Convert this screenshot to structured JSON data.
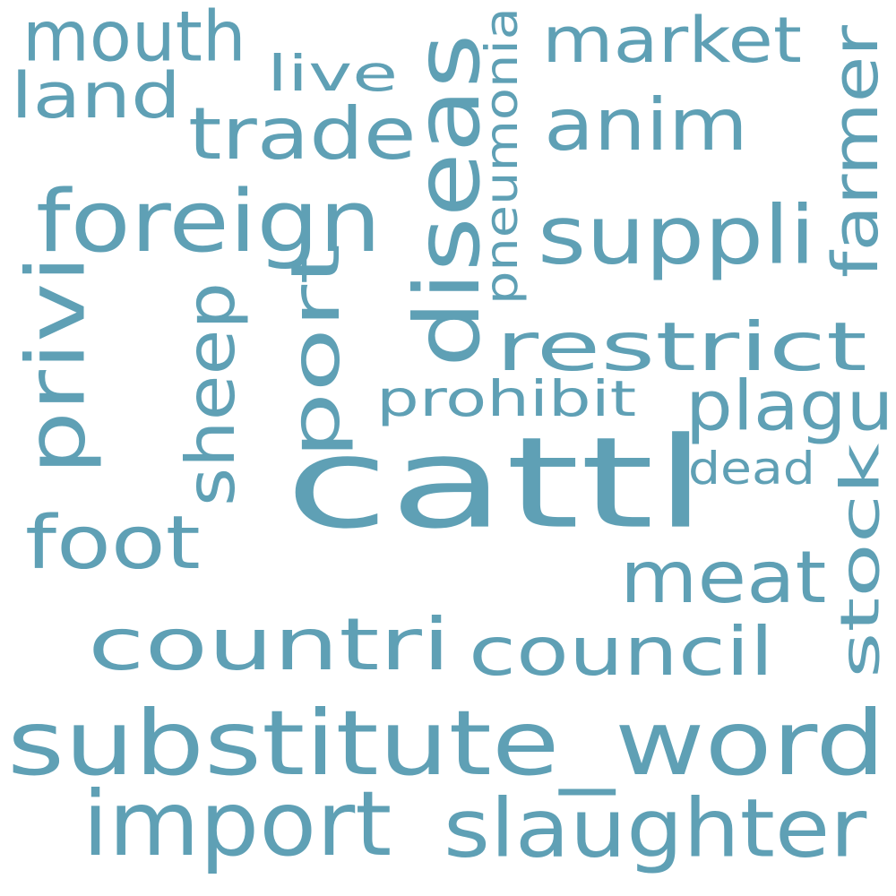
{
  "color": "#5fa0b5",
  "words": [
    {
      "id": "cattl",
      "text": "cattl",
      "vertical": false
    },
    {
      "id": "substitute-word",
      "text": "substitute_word",
      "vertical": false
    },
    {
      "id": "countri",
      "text": "countri",
      "vertical": false
    },
    {
      "id": "import",
      "text": "import",
      "vertical": false
    },
    {
      "id": "slaughter",
      "text": "slaughter",
      "vertical": false
    },
    {
      "id": "foreign",
      "text": "foreign",
      "vertical": false
    },
    {
      "id": "diseas",
      "text": "diseas",
      "vertical": true
    },
    {
      "id": "restrict",
      "text": "restrict",
      "vertical": false
    },
    {
      "id": "council",
      "text": "council",
      "vertical": false
    },
    {
      "id": "meat",
      "text": "meat",
      "vertical": false
    },
    {
      "id": "anim",
      "text": "anim",
      "vertical": false
    },
    {
      "id": "suppli",
      "text": "suppli",
      "vertical": false
    },
    {
      "id": "market",
      "text": "market",
      "vertical": false
    },
    {
      "id": "mouth",
      "text": "mouth",
      "vertical": false
    },
    {
      "id": "trade",
      "text": "trade",
      "vertical": false
    },
    {
      "id": "land",
      "text": "land",
      "vertical": false
    },
    {
      "id": "foot",
      "text": "foot",
      "vertical": false
    },
    {
      "id": "farmer",
      "text": "farmer",
      "vertical": true
    },
    {
      "id": "stock",
      "text": "stock",
      "vertical": true
    },
    {
      "id": "privi",
      "text": "privi",
      "vertical": true
    },
    {
      "id": "sheep",
      "text": "sheep",
      "vertical": true
    },
    {
      "id": "port",
      "text": "port",
      "vertical": true
    },
    {
      "id": "plagu",
      "text": "plagu",
      "vertical": false
    },
    {
      "id": "prohibit",
      "text": "prohibit",
      "vertical": false
    },
    {
      "id": "pneumonia",
      "text": "pneumonia",
      "vertical": true
    },
    {
      "id": "live",
      "text": "live",
      "vertical": false
    },
    {
      "id": "dead",
      "text": "dead",
      "vertical": false
    }
  ]
}
